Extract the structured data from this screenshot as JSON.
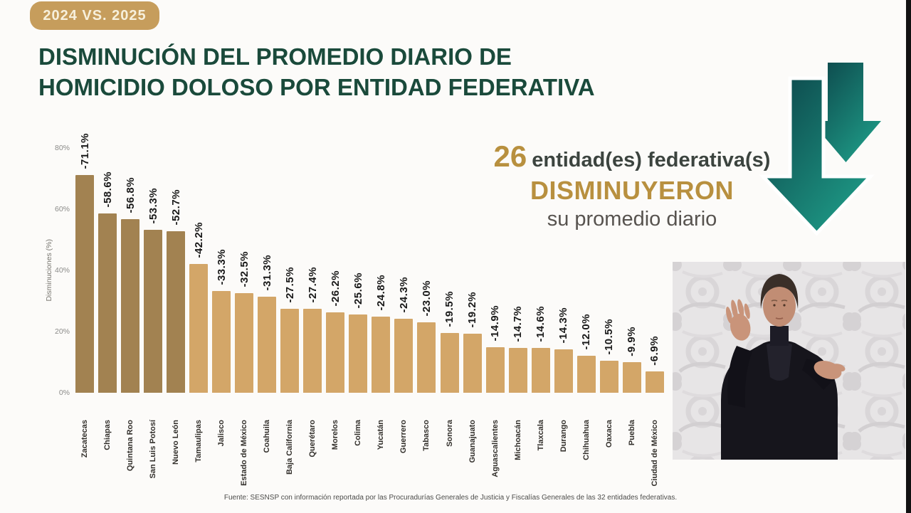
{
  "badge": {
    "label": "2024 VS. 2025"
  },
  "title": {
    "line1": "DISMINUCIÓN DEL PROMEDIO DIARIO DE",
    "line2": "HOMICIDIO DOLOSO POR ENTIDAD FEDERATIVA"
  },
  "chart_data": {
    "type": "bar",
    "title": "Disminución del promedio diario de homicidio doloso por entidad federativa (2024 vs. 2025)",
    "xlabel": "",
    "ylabel": "Disminuciones (%)",
    "ylim": [
      0,
      80
    ],
    "yticks": [
      "0%",
      "20%",
      "40%",
      "60%",
      "80%"
    ],
    "grid": false,
    "legend": "none",
    "categories": [
      "Zacatecas",
      "Chiapas",
      "Quintana Roo",
      "San Luis Potosí",
      "Nuevo León",
      "Tamaulipas",
      "Jalisco",
      "Estado de México",
      "Coahuila",
      "Baja California",
      "Querétaro",
      "Morelos",
      "Colima",
      "Yucatán",
      "Guerrero",
      "Tabasco",
      "Sonora",
      "Guanajuato",
      "Aguascalientes",
      "Michoacán",
      "Tlaxcala",
      "Durango",
      "Chihuahua",
      "Oaxaca",
      "Puebla",
      "Ciudad de México"
    ],
    "values": [
      -71.1,
      -58.6,
      -56.8,
      -53.3,
      -52.7,
      -42.2,
      -33.3,
      -32.5,
      -31.3,
      -27.5,
      -27.4,
      -26.2,
      -25.6,
      -24.8,
      -24.3,
      -23.0,
      -19.5,
      -19.2,
      -14.9,
      -14.7,
      -14.6,
      -14.3,
      -12.0,
      -10.5,
      -9.9,
      -6.9
    ],
    "labels": [
      "-71.1%",
      "-58.6%",
      "-56.8%",
      "-53.3%",
      "-52.7%",
      "-42.2%",
      "-33.3%",
      "-32.5%",
      "-31.3%",
      "-27.5%",
      "-27.4%",
      "-26.2%",
      "-25.6%",
      "-24.8%",
      "-24.3%",
      "-23.0%",
      "-19.5%",
      "-19.2%",
      "-14.9%",
      "-14.7%",
      "-14.6%",
      "-14.3%",
      "-12.0%",
      "-10.5%",
      "-9.9%",
      "-6.9%"
    ],
    "dark_count": 5,
    "colors": {
      "bar_dark": "#a28251",
      "bar_light": "#d3a668"
    }
  },
  "highlight": {
    "count": "26",
    "entities_text": "entidad(es) federativa(s)",
    "verb": "DISMINUYERON",
    "tail": "su promedio diario",
    "accent_color": "#b8903f"
  },
  "icons": {
    "down_arrow": "double-down-arrow",
    "teal_dark": "#0c4348",
    "teal_light": "#1f9e89"
  },
  "video": {
    "description": "intérprete de lengua de señas"
  },
  "footer": {
    "source": "Fuente: SESNSP con información reportada por las Procuradurías Generales de Justicia y Fiscalías Generales de las 32 entidades federativas."
  },
  "colors": {
    "title_green": "#1a4a3b",
    "badge_gold": "#c69d5c",
    "badge_text": "#f7f0dc",
    "background": "#fcfbf9"
  }
}
